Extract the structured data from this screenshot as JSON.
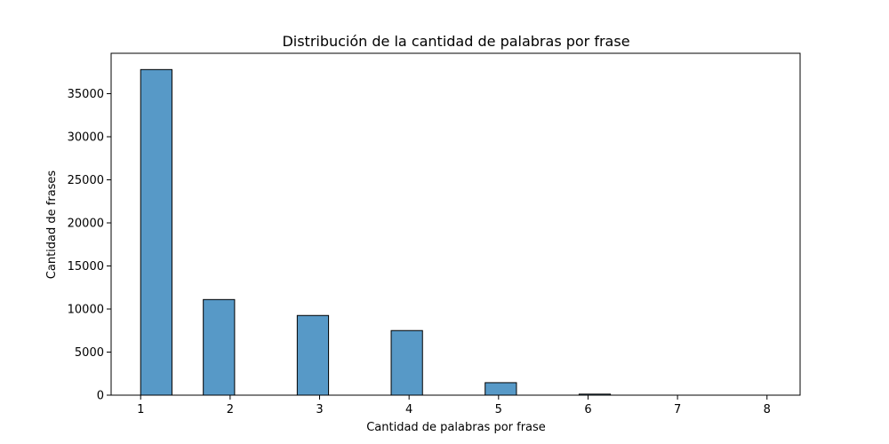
{
  "chart_data": {
    "type": "bar",
    "title": "Distribución de la cantidad de palabras por frase",
    "xlabel": "Cantidad de palabras por frase",
    "ylabel": "Cantidad de frases",
    "bins": [
      {
        "x0": 1.0,
        "x1": 1.35,
        "value": 37800
      },
      {
        "x0": 1.7,
        "x1": 2.05,
        "value": 11100
      },
      {
        "x0": 2.75,
        "x1": 3.1,
        "value": 9250
      },
      {
        "x0": 3.8,
        "x1": 4.15,
        "value": 7500
      },
      {
        "x0": 4.85,
        "x1": 5.2,
        "value": 1450
      },
      {
        "x0": 5.9,
        "x1": 6.25,
        "value": 120
      },
      {
        "x0": 6.95,
        "x1": 7.3,
        "value": 0
      },
      {
        "x0": 8.0,
        "x1": 8.35,
        "value": 0
      }
    ],
    "xlim": [
      0.67,
      8.37
    ],
    "ylim": [
      0,
      39690
    ],
    "xticks": [
      1,
      2,
      3,
      4,
      5,
      6,
      7,
      8
    ],
    "yticks": [
      0,
      5000,
      10000,
      15000,
      20000,
      25000,
      30000,
      35000
    ],
    "grid": false,
    "bar_color": "#5799c7",
    "edge_color": "#000000"
  }
}
